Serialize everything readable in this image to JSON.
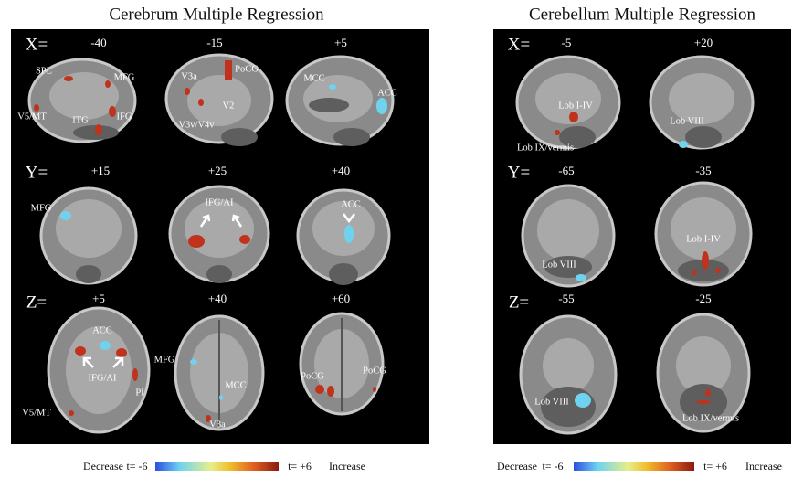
{
  "left_panel": {
    "title": "Cerebrum Multiple Regression",
    "rows": [
      {
        "axis": "X=",
        "slices": [
          "-40",
          "-15",
          "+5"
        ],
        "labels": [
          "SPL",
          "MFG",
          "V5/MT",
          "ITG",
          "IFG",
          "V3a",
          "PoCG",
          "V2",
          "V3v/V4v",
          "MCC",
          "ACC"
        ]
      },
      {
        "axis": "Y=",
        "slices": [
          "+15",
          "+25",
          "+40"
        ],
        "labels": [
          "MFG",
          "IFG/AI",
          "ACC"
        ]
      },
      {
        "axis": "Z=",
        "slices": [
          "+5",
          "+40",
          "+60"
        ],
        "labels": [
          "ACC",
          "IFG/AI",
          "PI",
          "V5/MT",
          "MFG",
          "MCC",
          "V3a",
          "PoCG",
          "PoCG"
        ]
      }
    ],
    "colorbar": {
      "low_label": "Decrease",
      "min": "t= -6",
      "max": "t= +6",
      "high_label": "Increase"
    }
  },
  "right_panel": {
    "title": "Cerebellum Multiple Regression",
    "rows": [
      {
        "axis": "X=",
        "slices": [
          "-5",
          "+20"
        ],
        "labels": [
          "Lob I-IV",
          "Lob IX/vermis",
          "Lob VIII"
        ]
      },
      {
        "axis": "Y=",
        "slices": [
          "-65",
          "-35"
        ],
        "labels": [
          "Lob VIII",
          "Lob I-IV"
        ]
      },
      {
        "axis": "Z=",
        "slices": [
          "-55",
          "-25"
        ],
        "labels": [
          "Lob VIII",
          "Lob IX/vermis"
        ]
      }
    ],
    "colorbar": {
      "low_label": "Decrease",
      "min": "t= -6",
      "max": "t= +6",
      "high_label": "Increase"
    }
  }
}
